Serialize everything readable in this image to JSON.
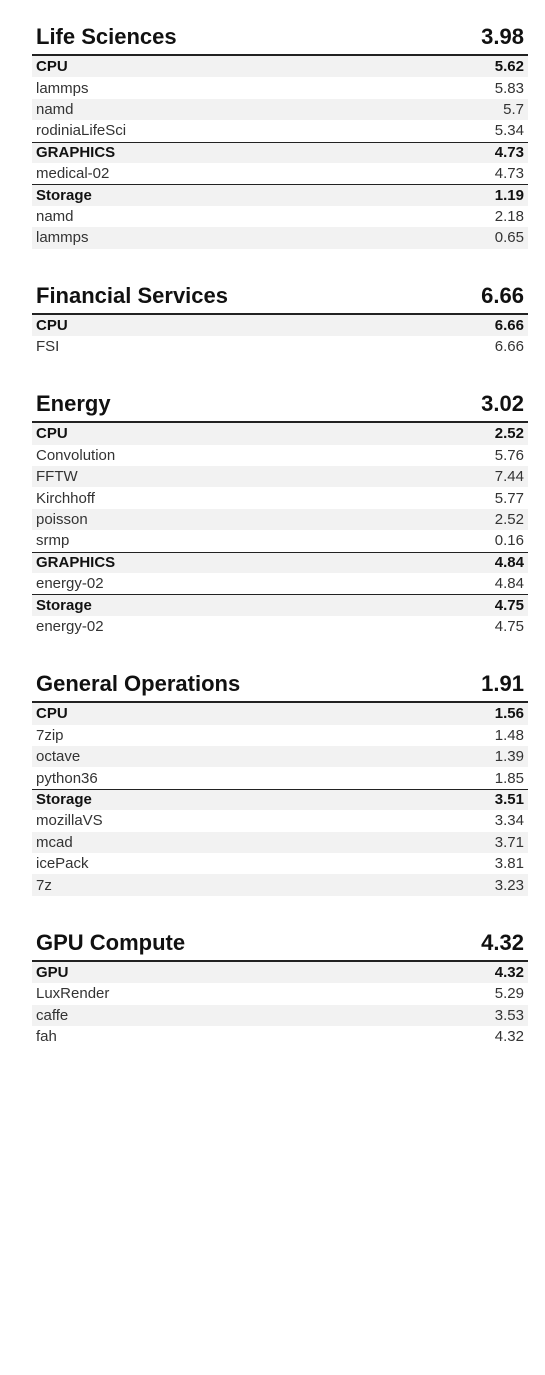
{
  "sections": [
    {
      "title": "Life Sciences",
      "score": "3.98",
      "groups": [
        {
          "name": "CPU",
          "score": "5.62",
          "items": [
            {
              "name": "lammps",
              "value": "5.83"
            },
            {
              "name": "namd",
              "value": "5.7"
            },
            {
              "name": "rodiniaLifeSci",
              "value": "5.34"
            }
          ]
        },
        {
          "name": "GRAPHICS",
          "score": "4.73",
          "items": [
            {
              "name": "medical-02",
              "value": "4.73"
            }
          ]
        },
        {
          "name": "Storage",
          "score": "1.19",
          "items": [
            {
              "name": "namd",
              "value": "2.18"
            },
            {
              "name": "lammps",
              "value": "0.65"
            }
          ]
        }
      ]
    },
    {
      "title": "Financial Services",
      "score": "6.66",
      "groups": [
        {
          "name": "CPU",
          "score": "6.66",
          "items": [
            {
              "name": "FSI",
              "value": "6.66"
            }
          ]
        }
      ]
    },
    {
      "title": "Energy",
      "score": "3.02",
      "groups": [
        {
          "name": "CPU",
          "score": "2.52",
          "items": [
            {
              "name": "Convolution",
              "value": "5.76"
            },
            {
              "name": "FFTW",
              "value": "7.44"
            },
            {
              "name": "Kirchhoff",
              "value": "5.77"
            },
            {
              "name": "poisson",
              "value": "2.52"
            },
            {
              "name": "srmp",
              "value": "0.16"
            }
          ]
        },
        {
          "name": "GRAPHICS",
          "score": "4.84",
          "items": [
            {
              "name": "energy-02",
              "value": "4.84"
            }
          ]
        },
        {
          "name": "Storage",
          "score": "4.75",
          "items": [
            {
              "name": "energy-02",
              "value": "4.75"
            }
          ]
        }
      ]
    },
    {
      "title": "General Operations",
      "score": "1.91",
      "groups": [
        {
          "name": "CPU",
          "score": "1.56",
          "items": [
            {
              "name": "7zip",
              "value": "1.48"
            },
            {
              "name": "octave",
              "value": "1.39"
            },
            {
              "name": "python36",
              "value": "1.85"
            }
          ]
        },
        {
          "name": "Storage",
          "score": "3.51",
          "items": [
            {
              "name": "mozillaVS",
              "value": "3.34"
            },
            {
              "name": "mcad",
              "value": "3.71"
            },
            {
              "name": "icePack",
              "value": "3.81"
            },
            {
              "name": "7z",
              "value": "3.23"
            }
          ]
        }
      ]
    },
    {
      "title": "GPU Compute",
      "score": "4.32",
      "groups": [
        {
          "name": "GPU",
          "score": "4.32",
          "items": [
            {
              "name": "LuxRender",
              "value": "5.29"
            },
            {
              "name": "caffe",
              "value": "3.53"
            },
            {
              "name": "fah",
              "value": "4.32"
            }
          ]
        }
      ]
    }
  ],
  "colors": {
    "text": "#333333",
    "heading": "#111111",
    "rule": "#222222",
    "shade": "#f2f2f2"
  }
}
